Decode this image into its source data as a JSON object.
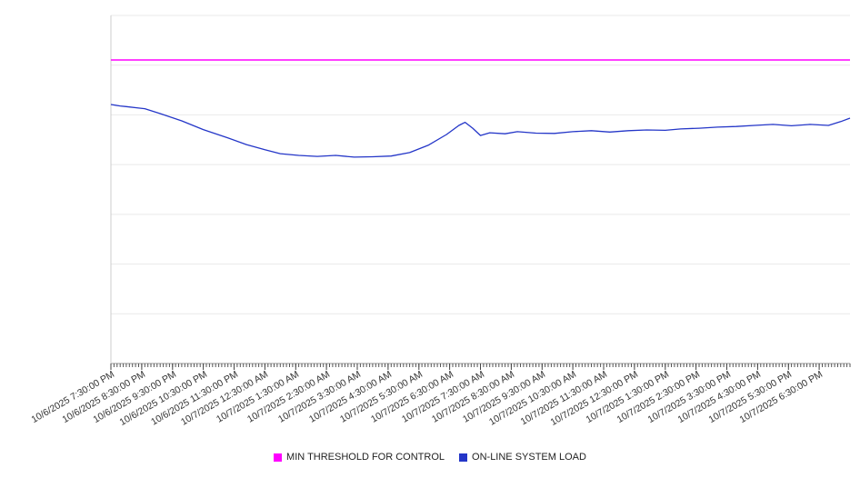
{
  "chart_data": {
    "type": "line",
    "title": "",
    "xlabel": "",
    "ylabel": "",
    "x_unit": "hours elapsed from 10/6/2025 7:30:00 PM",
    "x_range_hours": [
      0,
      24
    ],
    "ylim": [
      0,
      100
    ],
    "y_axis_labels_visible": false,
    "y_gridline_divisions": 7,
    "grid": "horizontal",
    "legend_position": "bottom-center",
    "x_tick_labels": [
      "10/6/2025 7:30:00 PM",
      "10/6/2025 8:30:00 PM",
      "10/6/2025 9:30:00 PM",
      "10/6/2025 10:30:00 PM",
      "10/6/2025 11:30:00 PM",
      "10/7/2025 12:30:00 AM",
      "10/7/2025 1:30:00 AM",
      "10/7/2025 2:30:00 AM",
      "10/7/2025 3:30:00 AM",
      "10/7/2025 4:30:00 AM",
      "10/7/2025 5:30:00 AM",
      "10/7/2025 6:30:00 AM",
      "10/7/2025 7:30:00 AM",
      "10/7/2025 8:30:00 AM",
      "10/7/2025 9:30:00 AM",
      "10/7/2025 10:30:00 AM",
      "10/7/2025 11:30:00 AM",
      "10/7/2025 12:30:00 PM",
      "10/7/2025 1:30:00 PM",
      "10/7/2025 2:30:00 PM",
      "10/7/2025 3:30:00 PM",
      "10/7/2025 4:30:00 PM",
      "10/7/2025 5:30:00 PM",
      "10/7/2025 6:30:00 PM"
    ],
    "series": [
      {
        "name": "MIN THRESHOLD FOR CONTROL",
        "color": "#ff00ff",
        "style": "constant-horizontal-line",
        "value": 87.2
      },
      {
        "name": "ON-LINE SYSTEM LOAD",
        "color": "#2436c8",
        "style": "line",
        "points": [
          [
            0,
            74.4
          ],
          [
            0.3,
            74.0
          ],
          [
            0.5,
            73.8
          ],
          [
            0.9,
            73.4
          ],
          [
            1.1,
            73.2
          ],
          [
            1.6,
            71.8
          ],
          [
            2.3,
            69.7
          ],
          [
            3.0,
            67.2
          ],
          [
            3.8,
            64.8
          ],
          [
            4.4,
            62.9
          ],
          [
            5.0,
            61.4
          ],
          [
            5.5,
            60.3
          ],
          [
            6.1,
            59.8
          ],
          [
            6.7,
            59.5
          ],
          [
            7.3,
            59.8
          ],
          [
            7.9,
            59.3
          ],
          [
            8.5,
            59.4
          ],
          [
            9.1,
            59.6
          ],
          [
            9.7,
            60.6
          ],
          [
            10.3,
            62.7
          ],
          [
            10.9,
            65.8
          ],
          [
            11.3,
            68.4
          ],
          [
            11.5,
            69.3
          ],
          [
            11.75,
            67.6
          ],
          [
            12.0,
            65.5
          ],
          [
            12.3,
            66.3
          ],
          [
            12.8,
            66.0
          ],
          [
            13.2,
            66.6
          ],
          [
            13.8,
            66.2
          ],
          [
            14.4,
            66.1
          ],
          [
            15.0,
            66.6
          ],
          [
            15.6,
            66.9
          ],
          [
            16.2,
            66.5
          ],
          [
            16.8,
            66.9
          ],
          [
            17.4,
            67.1
          ],
          [
            18.0,
            67.0
          ],
          [
            18.5,
            67.4
          ],
          [
            19.1,
            67.6
          ],
          [
            19.7,
            67.9
          ],
          [
            20.3,
            68.1
          ],
          [
            20.9,
            68.4
          ],
          [
            21.5,
            68.7
          ],
          [
            22.1,
            68.3
          ],
          [
            22.7,
            68.7
          ],
          [
            23.3,
            68.4
          ],
          [
            23.7,
            69.5
          ],
          [
            24,
            70.5
          ]
        ]
      }
    ]
  }
}
